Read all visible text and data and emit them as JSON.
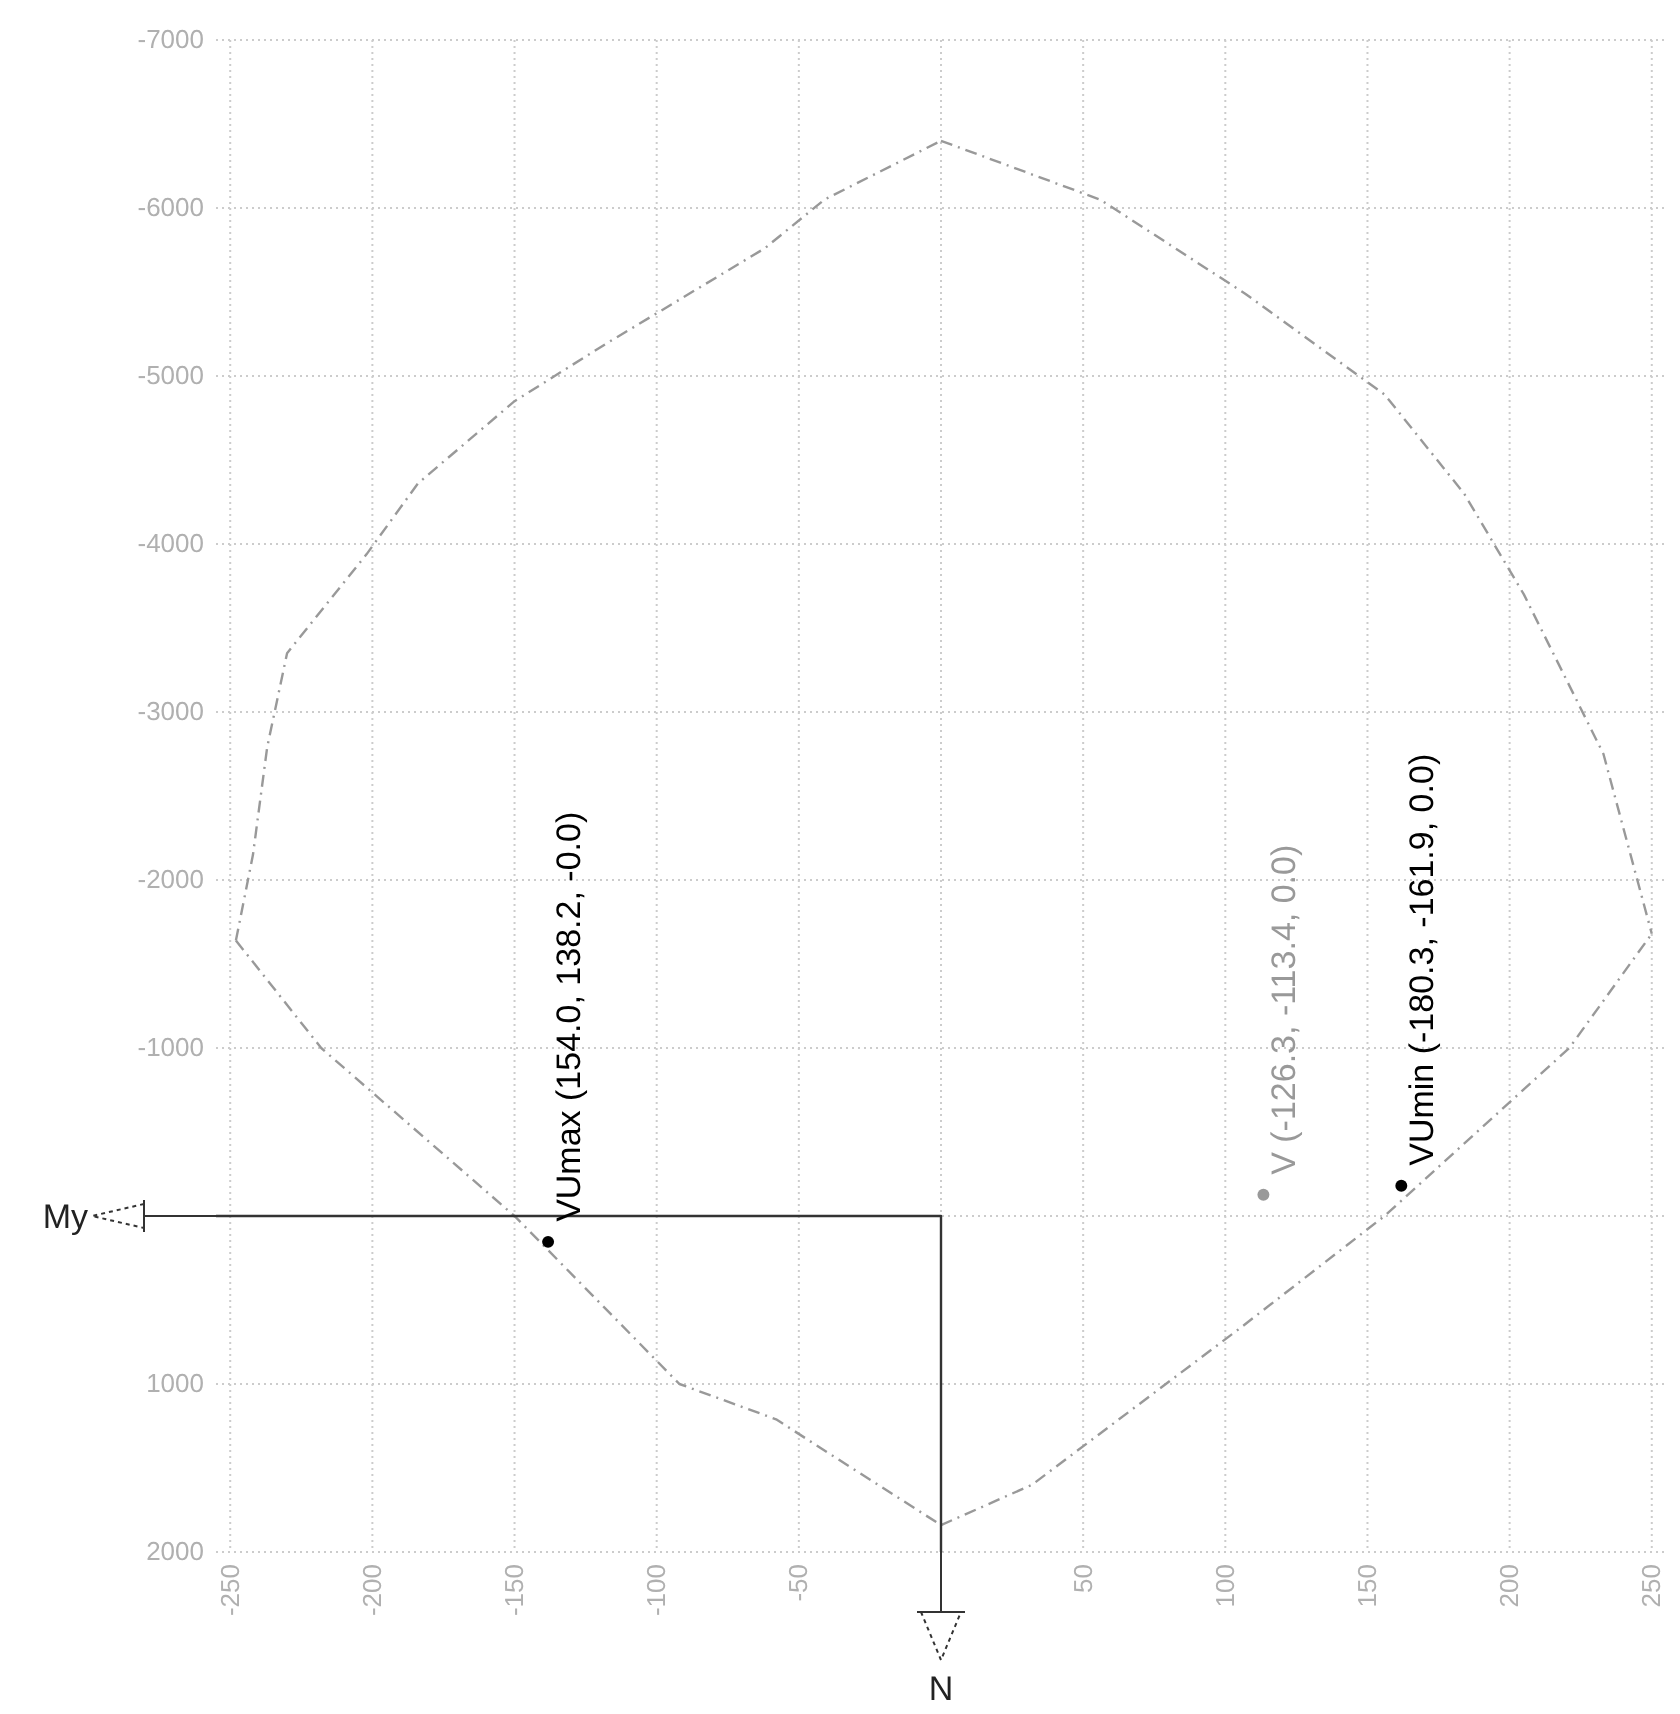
{
  "chart_data": {
    "type": "line",
    "annotations": [
      "My",
      "N"
    ],
    "xlim": [
      -255,
      255
    ],
    "ylim": [
      2000,
      -7000
    ],
    "xticks": [
      -250,
      -200,
      -150,
      -100,
      -50,
      {
        "value": 0,
        "label": null
      },
      50,
      100,
      150,
      200,
      250
    ],
    "yticks": [
      -7000,
      -6000,
      -5000,
      -4000,
      -3000,
      -2000,
      -1000,
      {
        "value": 0,
        "label": null
      },
      1000,
      2000
    ],
    "grid": true,
    "series": [
      {
        "color": "#999999",
        "line_style": "dashed",
        "marker": "none",
        "x": [
          -248,
          -242,
          -237,
          -230,
          -202,
          -184,
          -150,
          -118,
          -62,
          -41,
          0
        ],
        "values": [
          -1640,
          -2150,
          -2790,
          -3350,
          -3940,
          -4360,
          -4850,
          -5190,
          -5760,
          -6050,
          -6400
        ]
      },
      {
        "color": "#999999",
        "line_style": "dashed",
        "marker": "none",
        "x": [
          0,
          56,
          107,
          156,
          184,
          205,
          233,
          250
        ],
        "values": [
          -6400,
          -6050,
          -5490,
          -4890,
          -4300,
          -3700,
          -2750,
          -1680
        ]
      },
      {
        "color": "#999999",
        "line_style": "dashed",
        "marker": "none",
        "x": [
          0,
          32,
          105,
          156,
          221,
          250
        ],
        "values": [
          1840,
          1600,
          670,
          0,
          -1000,
          -1680
        ]
      },
      {
        "color": "#999999",
        "line_style": "dashed",
        "marker": "none",
        "x": [
          -248,
          -218,
          -150,
          -92,
          -58,
          -36,
          0
        ],
        "values": [
          -1640,
          -1000,
          0,
          1000,
          1210,
          1450,
          1840
        ]
      },
      {
        "color": "#333333",
        "line_style": "solid",
        "marker": "none",
        "x": [
          -255,
          0,
          0
        ],
        "values": [
          0,
          0,
          2000
        ]
      },
      {
        "type": "scatter",
        "name": "VUmax (154.0, 138.2, -0.0)",
        "color": "#000000",
        "marker": "circle",
        "x": [
          -138.2
        ],
        "values": [
          154
        ]
      },
      {
        "type": "scatter",
        "name": "V (-126.3, -113.4, 0.0)",
        "color": "#999999",
        "marker": "circle",
        "x": [
          113.4
        ],
        "values": [
          -126
        ]
      },
      {
        "type": "scatter",
        "name": "VUmin (-180.3, -161.9, 0.0)",
        "color": "#000000",
        "marker": "circle",
        "x": [
          161.9
        ],
        "values": [
          -180
        ]
      }
    ]
  }
}
